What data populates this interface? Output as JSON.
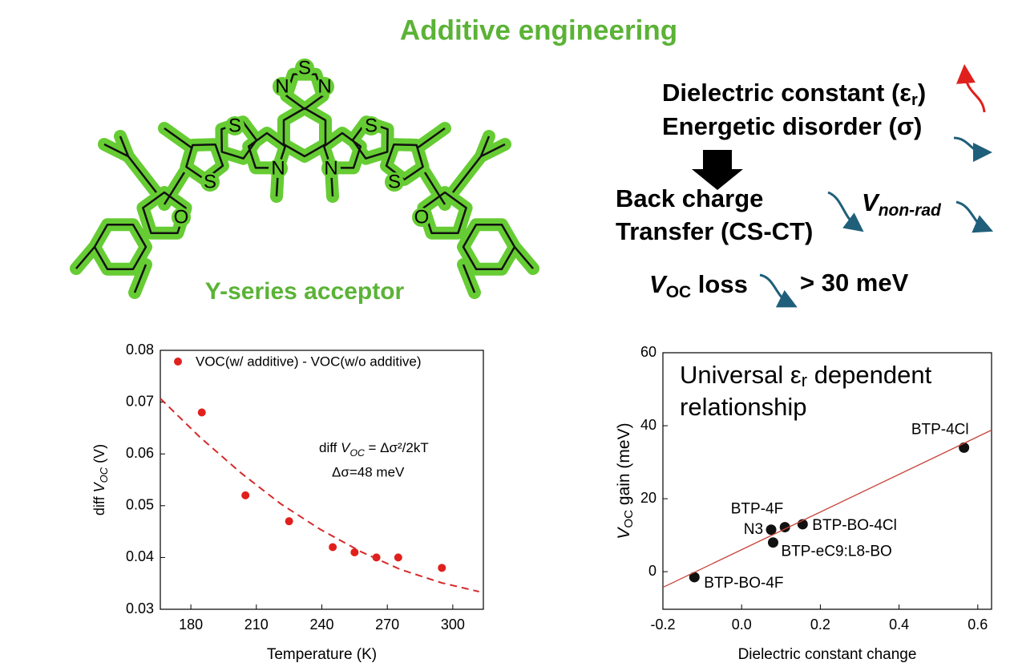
{
  "title": "Additive engineering",
  "molecule": {
    "label": "Y-series acceptor",
    "atoms": [
      "N",
      "S",
      "N",
      "S",
      "S",
      "N",
      "N",
      "S",
      "S",
      "O",
      "O"
    ]
  },
  "mechanism": {
    "line1": [
      "Dielectric constant (ε",
      "r",
      ")"
    ],
    "line2": "Energetic disorder (σ)",
    "line3": "Back charge",
    "line4": "Transfer (CS-CT)",
    "vnonrad": [
      "V",
      "non-rad"
    ],
    "voc": [
      "V",
      "OC",
      " loss"
    ],
    "gain": "> 30 meV"
  },
  "chart_data": [
    {
      "type": "scatter",
      "xlabel": "Temperature (K)",
      "ylabel": [
        "diff ",
        "V",
        "OC",
        " (V)"
      ],
      "xlim": [
        166,
        314
      ],
      "ylim": [
        0.03,
        0.08
      ],
      "xticks": [
        180,
        210,
        240,
        270,
        300
      ],
      "yticks": [
        0.03,
        0.04,
        0.05,
        0.06,
        0.07,
        0.08
      ],
      "series": [
        {
          "name": "VOC(w/ additive) - VOC(w/o additive)",
          "color": "#e0201c",
          "x": [
            185,
            205,
            225,
            245,
            255,
            265,
            275,
            295
          ],
          "values": [
            0.068,
            0.052,
            0.047,
            0.042,
            0.041,
            0.04,
            0.04,
            0.038
          ]
        },
        {
          "color": "#d42a2a",
          "style": "dashed",
          "x": [
            166,
            184,
            203,
            221,
            239,
            258,
            276,
            295,
            312
          ],
          "values": [
            0.0707,
            0.0633,
            0.0563,
            0.0504,
            0.0455,
            0.0411,
            0.0377,
            0.0351,
            0.0334
          ]
        }
      ],
      "annotations": [
        [
          "diff ",
          "V",
          "OC",
          " = Δσ²/2kT"
        ],
        "Δσ=48 meV"
      ]
    },
    {
      "type": "scatter",
      "xlabel": "Dielectric constant change",
      "ylabel": [
        "V",
        "OC",
        " gain (meV)"
      ],
      "xlim": [
        -0.2,
        0.635
      ],
      "ylim": [
        -10.3,
        60
      ],
      "xticks": [
        -0.2,
        {
          "value": 0,
          "label": "0.0"
        },
        0.2,
        0.4,
        0.6
      ],
      "yticks": [
        0,
        20,
        40,
        60
      ],
      "series": [
        {
          "color": "#111111",
          "labels": [
            "BTP-BO-4F",
            "N3",
            "BTP-4F",
            "BTP-BO-4Cl",
            "BTP-eC9:L8-BO",
            "BTP-4Cl"
          ],
          "x": [
            -0.12,
            0.075,
            0.11,
            0.155,
            0.08,
            0.565
          ],
          "values": [
            -1.5,
            11.5,
            12.2,
            13,
            8,
            34
          ]
        },
        {
          "color": "#c8443a",
          "style": "solid",
          "x": [
            -0.2,
            0.635
          ],
          "values": [
            -4.3,
            38.8
          ]
        }
      ],
      "annotations": [
        [
          "Universal ε",
          "r",
          " dependent"
        ],
        "relationship"
      ]
    }
  ]
}
